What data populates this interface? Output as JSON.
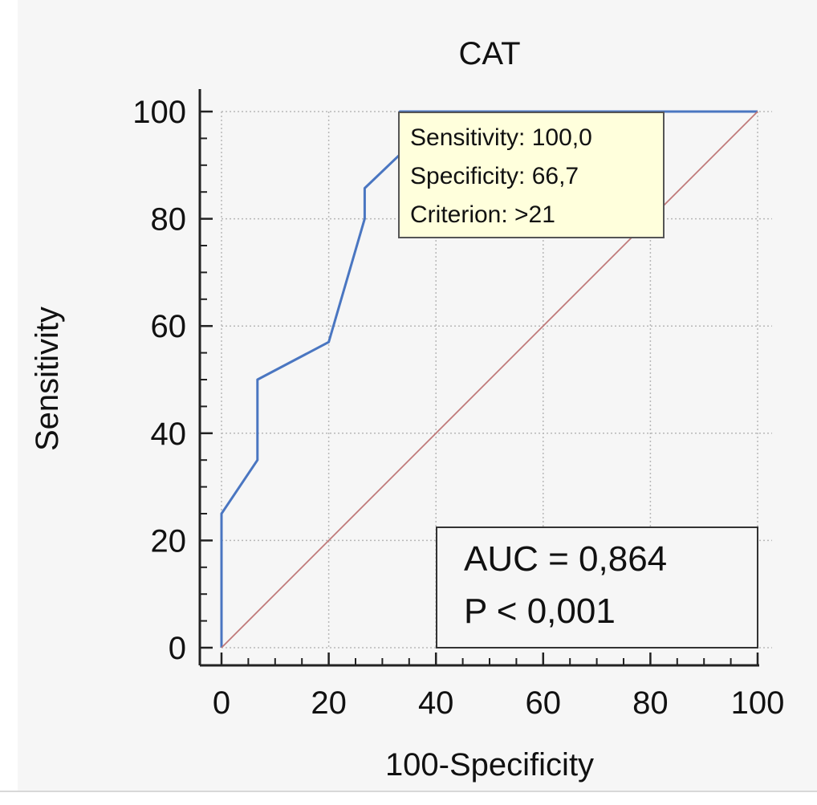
{
  "chart_data": {
    "type": "line",
    "title": "CAT",
    "xlabel": "100-Specificity",
    "ylabel": "Sensitivity",
    "xlim": [
      0,
      100
    ],
    "ylim": [
      0,
      100
    ],
    "xticks": [
      "0",
      "20",
      "40",
      "60",
      "80",
      "100"
    ],
    "yticks": [
      "0",
      "20",
      "40",
      "60",
      "80",
      "100"
    ],
    "grid": true,
    "series": [
      {
        "color": "#4a76c1",
        "x": [
          0,
          0,
          6.7,
          6.7,
          20,
          26.7,
          26.7,
          33.3,
          33.3,
          100
        ],
        "y": [
          0,
          25,
          35,
          50,
          57,
          80,
          85.7,
          92,
          100,
          100
        ]
      },
      {
        "color": "#c07a7a",
        "x": [
          0,
          100
        ],
        "y": [
          0,
          100
        ]
      }
    ],
    "tooltip": {
      "lines": [
        "Sensitivity: 100,0",
        "Specificity: 66,7",
        "Criterion: >21"
      ],
      "background": "#ffffdc"
    },
    "annotation": {
      "lines": [
        "AUC = 0,864",
        "P < 0,001"
      ]
    }
  }
}
